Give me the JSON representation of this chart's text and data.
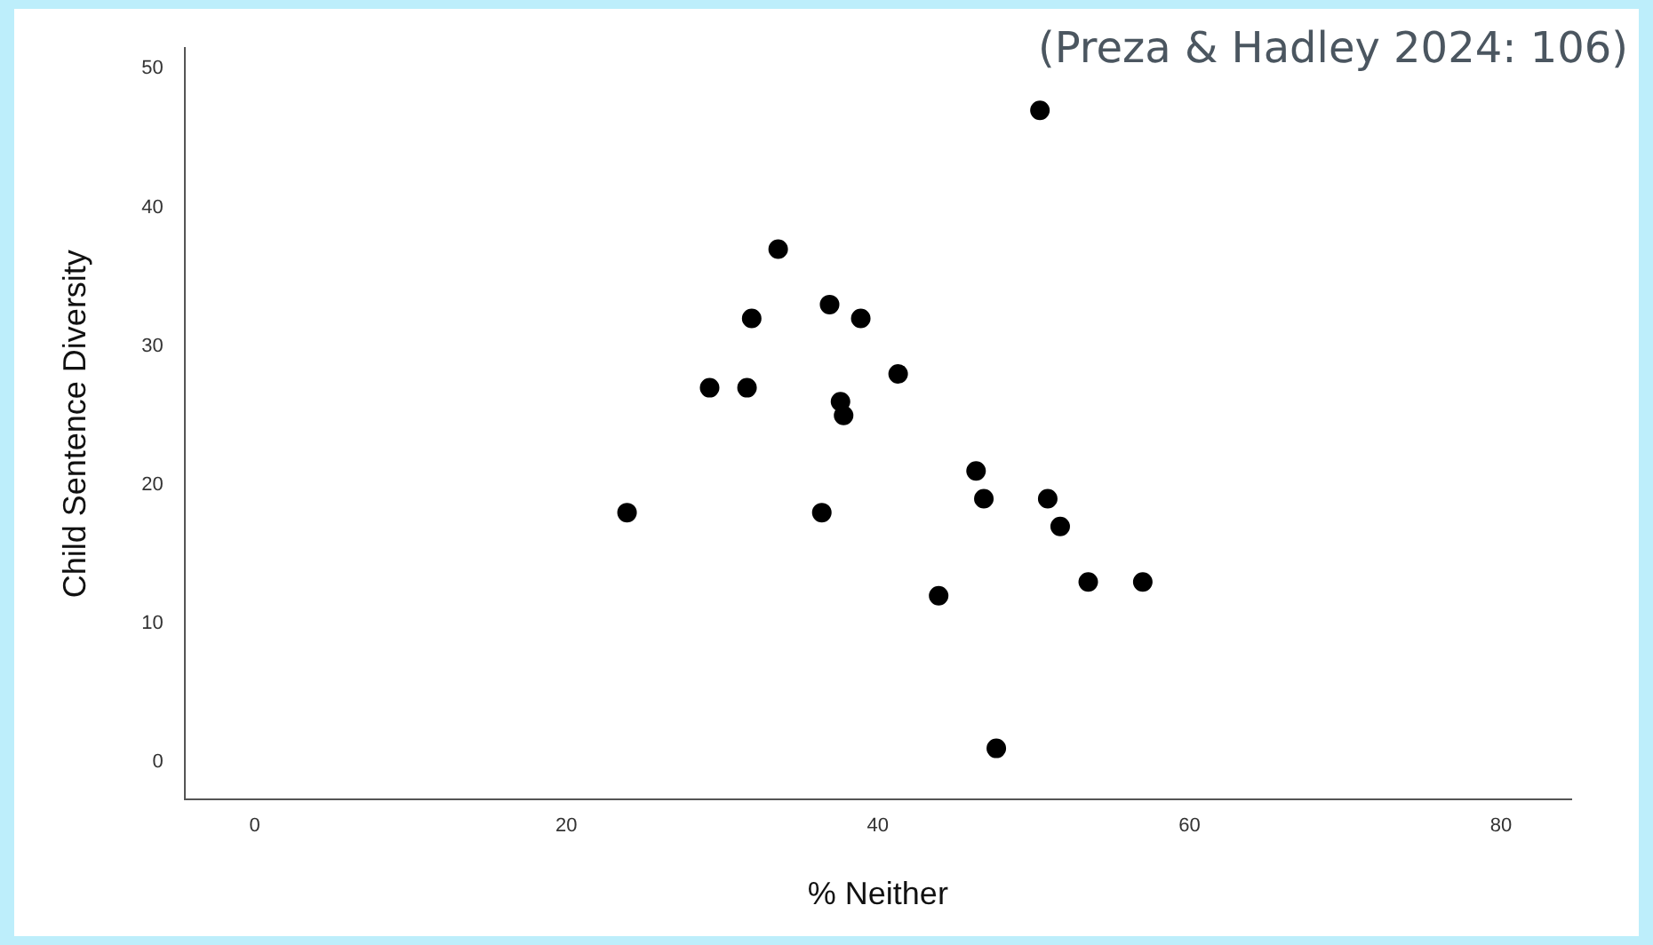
{
  "chart_data": {
    "type": "scatter",
    "xlabel": "% Neither",
    "ylabel": "Child Sentence Diversity",
    "annotations": [
      "(Preza & Hadley 2024: 106)"
    ],
    "x": [
      23.9,
      29.2,
      31.6,
      31.9,
      33.6,
      36.9,
      36.4,
      37.6,
      37.8,
      38.9,
      41.3,
      43.9,
      46.3,
      46.8,
      47.6,
      50.4,
      50.9,
      51.7,
      53.5,
      57.0
    ],
    "series": [
      {
        "color": "#000000",
        "values": [
          18,
          27,
          27,
          32,
          37,
          33,
          18,
          26,
          25,
          32,
          28,
          12,
          21,
          19,
          1,
          47,
          19,
          17,
          13,
          13
        ]
      }
    ],
    "xlim": [
      -4.5,
      84.5
    ],
    "xticks": [
      0,
      20,
      40,
      60,
      80
    ],
    "ylim": [
      -2.7,
      51.5
    ],
    "yticks": [
      0,
      10,
      20,
      30,
      40,
      50
    ],
    "grid": false,
    "legend": false,
    "marker": "circle"
  }
}
